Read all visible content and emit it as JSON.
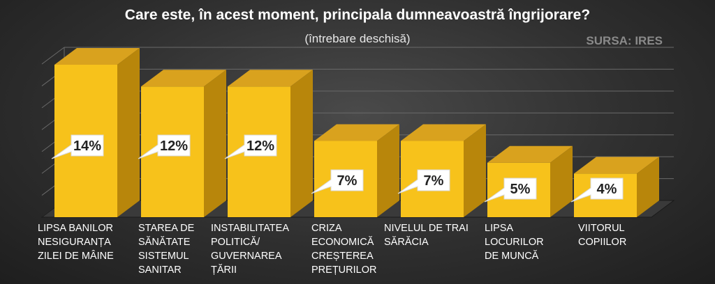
{
  "title": "Care este, în acest moment, principala dumneavoastră îngrijorare?",
  "subtitle": "(întrebare deschisă)",
  "source": "SURSA: IRES",
  "colors": {
    "bar_front": "#f7c21b",
    "bar_top": "#d9a21e",
    "bar_side": "#b8860b",
    "grid": "#6a6a6a"
  },
  "chart_data": {
    "type": "bar",
    "categories": [
      "LIPSA BANILOR NESIGURANȚA ZILEI DE MÂINE",
      "STAREA DE SĂNĂTATE SISTEMUL SANITAR",
      "INSTABILITATEA POLITICĂ/ GUVERNAREA ȚĂRII",
      "CRIZA ECONOMICĂ CREȘTEREA PREȚURILOR",
      "NIVELUL DE TRAI SĂRĂCIA",
      "LIPSA LOCURILOR DE MUNCĂ",
      "VIITORUL COPIILOR"
    ],
    "values": [
      14,
      12,
      12,
      7,
      7,
      5,
      4
    ],
    "data_labels": [
      "14%",
      "12%",
      "12%",
      "7%",
      "7%",
      "5%",
      "4%"
    ],
    "unit": "%",
    "ylim": [
      0,
      14
    ],
    "grid": true,
    "style": "3d-column"
  },
  "labels": [
    {
      "lines": [
        "LIPSA BANILOR",
        "NESIGURANȚA",
        "ZILEI DE MÂINE"
      ]
    },
    {
      "lines": [
        "STAREA DE",
        "SĂNĂTATE",
        "SISTEMUL",
        "SANITAR"
      ]
    },
    {
      "lines": [
        "INSTABILITATEA",
        "POLITICĂ/",
        "GUVERNAREA",
        "ȚĂRII"
      ]
    },
    {
      "lines": [
        "CRIZA",
        "ECONOMICĂ",
        "CREȘTEREA",
        "PREȚURILOR"
      ]
    },
    {
      "lines": [
        "NIVELUL DE TRAI",
        "SĂRĂCIA"
      ]
    },
    {
      "lines": [
        "LIPSA",
        "LOCURILOR",
        "DE MUNCĂ"
      ]
    },
    {
      "lines": [
        "VIITORUL",
        "COPIILOR"
      ]
    }
  ]
}
